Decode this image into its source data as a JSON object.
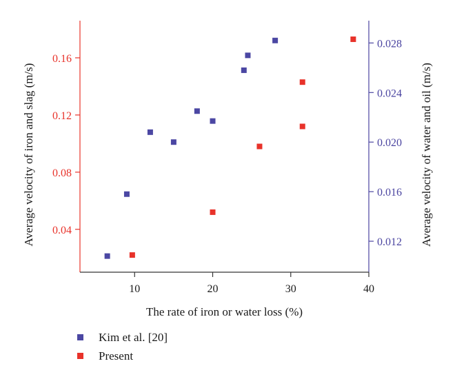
{
  "chart_data": {
    "type": "scatter",
    "title": "",
    "xlabel": "The rate of iron or water loss (%)",
    "ylabel_left": "Average velocity of iron and slag (m/s)",
    "ylabel_right": "Average velocity of water and oil (m/s)",
    "xlim": [
      3,
      40
    ],
    "ylim_left": [
      0.01,
      0.186
    ],
    "ylim_right": [
      0.0095,
      0.0298
    ],
    "x_ticks": [
      10,
      20,
      30,
      40
    ],
    "y_ticks_left": [
      0.04,
      0.08,
      0.12,
      0.16
    ],
    "y_ticks_right": [
      0.012,
      0.016,
      0.02,
      0.024,
      0.028
    ],
    "x_tick_labels": [
      "10",
      "20",
      "30",
      "40"
    ],
    "y_tick_labels_left": [
      "0.04",
      "0.08",
      "0.12",
      "0.16"
    ],
    "y_tick_labels_right": [
      "0.012",
      "0.016",
      "0.020",
      "0.024",
      "0.028"
    ],
    "colors": {
      "left_axis": "#e8322a",
      "right_axis": "#4a44a0"
    },
    "legend_position": "bottom-left",
    "grid": false,
    "series": [
      {
        "name": "Kim et al. [20]",
        "axis": "right",
        "color": "#4b47a3",
        "points": [
          {
            "x": 6.5,
            "y": 0.0108
          },
          {
            "x": 9,
            "y": 0.0158
          },
          {
            "x": 12,
            "y": 0.0208
          },
          {
            "x": 15,
            "y": 0.02
          },
          {
            "x": 18,
            "y": 0.0225
          },
          {
            "x": 20,
            "y": 0.0217
          },
          {
            "x": 24,
            "y": 0.0258
          },
          {
            "x": 24.5,
            "y": 0.027
          },
          {
            "x": 28,
            "y": 0.0282
          }
        ]
      },
      {
        "name": "Present",
        "axis": "left",
        "color": "#e8322a",
        "points": [
          {
            "x": 9.7,
            "y": 0.022
          },
          {
            "x": 20,
            "y": 0.052
          },
          {
            "x": 26,
            "y": 0.098
          },
          {
            "x": 31.5,
            "y": 0.112
          },
          {
            "x": 31.5,
            "y": 0.143
          },
          {
            "x": 38,
            "y": 0.173
          }
        ]
      }
    ]
  }
}
